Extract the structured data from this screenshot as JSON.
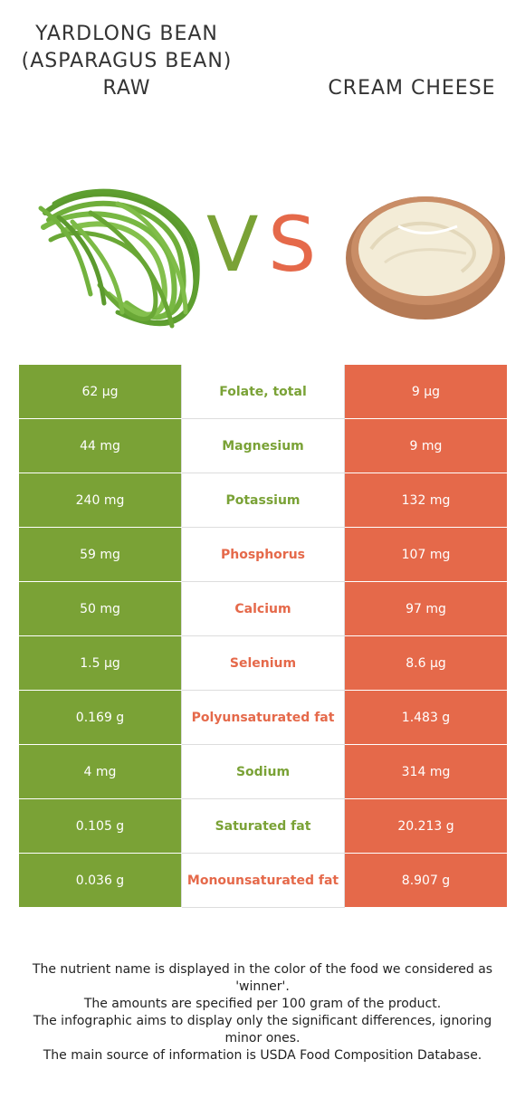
{
  "left_food": {
    "name": "YARDLONG BEAN (ASPARAGUS BEAN) RAW",
    "color": "#7aa236"
  },
  "right_food": {
    "name": "CREAM CHEESE",
    "color": "#e5694a"
  },
  "vs": {
    "v": "V",
    "s": "S"
  },
  "rows": [
    {
      "nutrient": "Folate, total",
      "left": "62 µg",
      "right": "9 µg",
      "winner": "left"
    },
    {
      "nutrient": "Magnesium",
      "left": "44 mg",
      "right": "9 mg",
      "winner": "left"
    },
    {
      "nutrient": "Potassium",
      "left": "240 mg",
      "right": "132 mg",
      "winner": "left"
    },
    {
      "nutrient": "Phosphorus",
      "left": "59 mg",
      "right": "107 mg",
      "winner": "right"
    },
    {
      "nutrient": "Calcium",
      "left": "50 mg",
      "right": "97 mg",
      "winner": "right"
    },
    {
      "nutrient": "Selenium",
      "left": "1.5 µg",
      "right": "8.6 µg",
      "winner": "right"
    },
    {
      "nutrient": "Polyunsaturated fat",
      "left": "0.169 g",
      "right": "1.483 g",
      "winner": "right"
    },
    {
      "nutrient": "Sodium",
      "left": "4 mg",
      "right": "314 mg",
      "winner": "left"
    },
    {
      "nutrient": "Saturated fat",
      "left": "0.105 g",
      "right": "20.213 g",
      "winner": "left"
    },
    {
      "nutrient": "Monounsaturated fat",
      "left": "0.036 g",
      "right": "8.907 g",
      "winner": "right"
    }
  ],
  "footnotes": [
    "The nutrient name is displayed in the color of the food we considered as 'winner'.",
    "The amounts are specified per 100 gram of the product.",
    "The infographic aims to display only the significant differences, ignoring minor ones.",
    "The main source of information is USDA Food Composition Database."
  ]
}
